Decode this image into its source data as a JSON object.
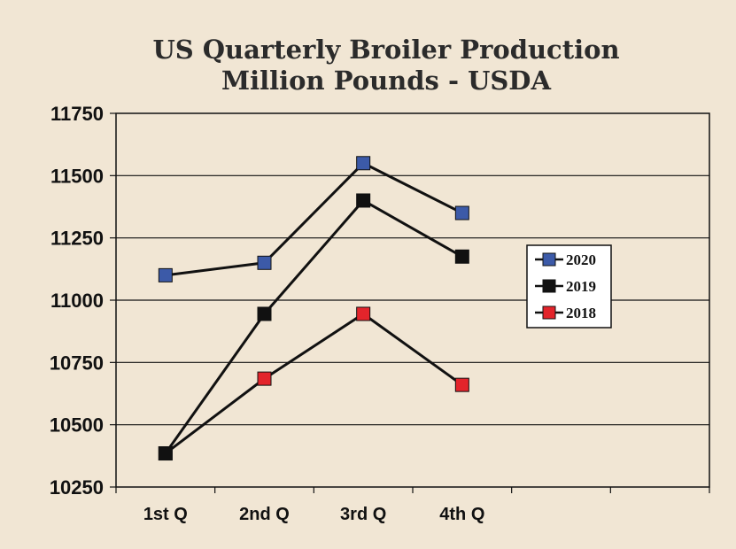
{
  "chart_data": {
    "type": "line",
    "title": "US Quarterly Broiler Production",
    "subtitle": "Million Pounds - USDA",
    "categories": [
      "1st Q",
      "2nd Q",
      "3rd Q",
      "4th Q"
    ],
    "ylim": [
      10250,
      11750
    ],
    "yticks": [
      10250,
      10500,
      10750,
      11000,
      11250,
      11500,
      11750
    ],
    "grid": "horizontal",
    "legend_position": "right",
    "series": [
      {
        "name": "2020",
        "color": "#3c5aa8",
        "values": [
          11100,
          11150,
          11550,
          11350
        ]
      },
      {
        "name": "2019",
        "color": "#111111",
        "values": [
          10385,
          10945,
          11400,
          11175
        ]
      },
      {
        "name": "2018",
        "color": "#e3242b",
        "values": [
          10385,
          10685,
          10945,
          10660
        ]
      }
    ]
  }
}
